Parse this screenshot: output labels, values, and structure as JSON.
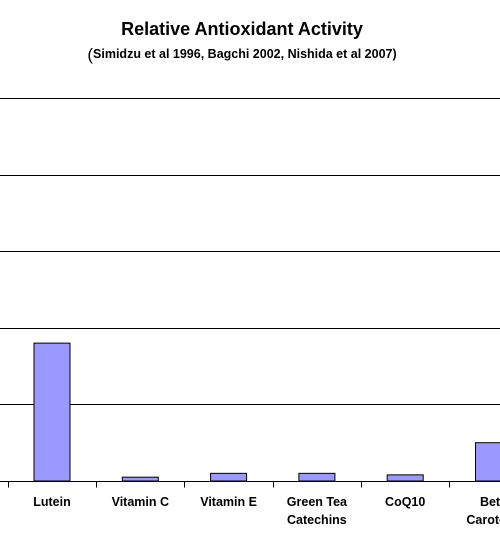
{
  "chart_data": {
    "type": "bar",
    "title": "Relative Antioxidant Activity",
    "subtitle_open_paren": "(",
    "subtitle": "Simidzu et al 1996,  Bagchi 2002, Nishida et al 2007)",
    "categories": [
      [
        "Lutein"
      ],
      [
        "Vitamin C"
      ],
      [
        "Vitamin E"
      ],
      [
        "Green Tea",
        "Catechins"
      ],
      [
        "CoQ10"
      ],
      [
        "Beta",
        "Carotene"
      ]
    ],
    "values": [
      18,
      0.5,
      1,
      1,
      0.8,
      5
    ],
    "ylim": [
      0,
      50
    ],
    "gridlines": true,
    "bar_color": "#9999ff",
    "bar_edge_color": "#000000"
  }
}
